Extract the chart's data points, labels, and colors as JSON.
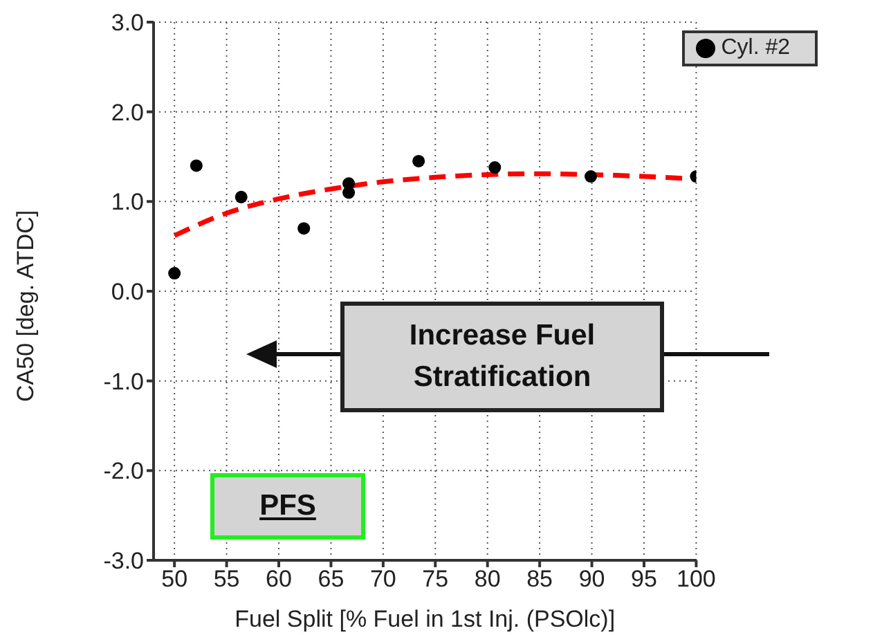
{
  "chart_data": {
    "type": "scatter",
    "xlabel": "Fuel Split [% Fuel in 1st Inj. (PSOlc)]",
    "ylabel": "CA50 [deg. ATDC]",
    "xlim": [
      48,
      100
    ],
    "xticks": [
      50,
      55,
      60,
      65,
      70,
      75,
      80,
      85,
      90,
      95,
      100
    ],
    "ylim": [
      -3,
      3
    ],
    "yticks": [
      {
        "value": -3,
        "label": "-3.0"
      },
      {
        "value": -2,
        "label": "-2.0"
      },
      {
        "value": -1,
        "label": "-1.0"
      },
      {
        "value": 0,
        "label": "0.0"
      },
      {
        "value": 1,
        "label": "1.0"
      },
      {
        "value": 2,
        "label": "2.0"
      },
      {
        "value": 3,
        "label": "3.0"
      }
    ],
    "grid": true,
    "legend": "top right",
    "marker": "circle",
    "series": [
      {
        "name": "Cyl. #2",
        "color": "#000000",
        "x": [
          50,
          52.1,
          56.4,
          62.4,
          66.7,
          66.7,
          73.4,
          80.7,
          89.9,
          100
        ],
        "values": [
          0.2,
          1.4,
          1.05,
          0.7,
          1.2,
          1.1,
          1.45,
          1.38,
          1.28,
          1.28
        ]
      },
      {
        "type": "line",
        "color": "#ff0000",
        "line_style": "dashed",
        "marker": "none",
        "x": [
          50,
          55,
          60,
          65,
          70,
          75,
          80,
          85,
          90,
          95,
          100
        ],
        "values": [
          0.62,
          0.87,
          1.03,
          1.14,
          1.22,
          1.27,
          1.3,
          1.31,
          1.3,
          1.28,
          1.25
        ]
      }
    ],
    "annotations": [
      "Increase Fuel Stratification",
      "PFS"
    ]
  }
}
